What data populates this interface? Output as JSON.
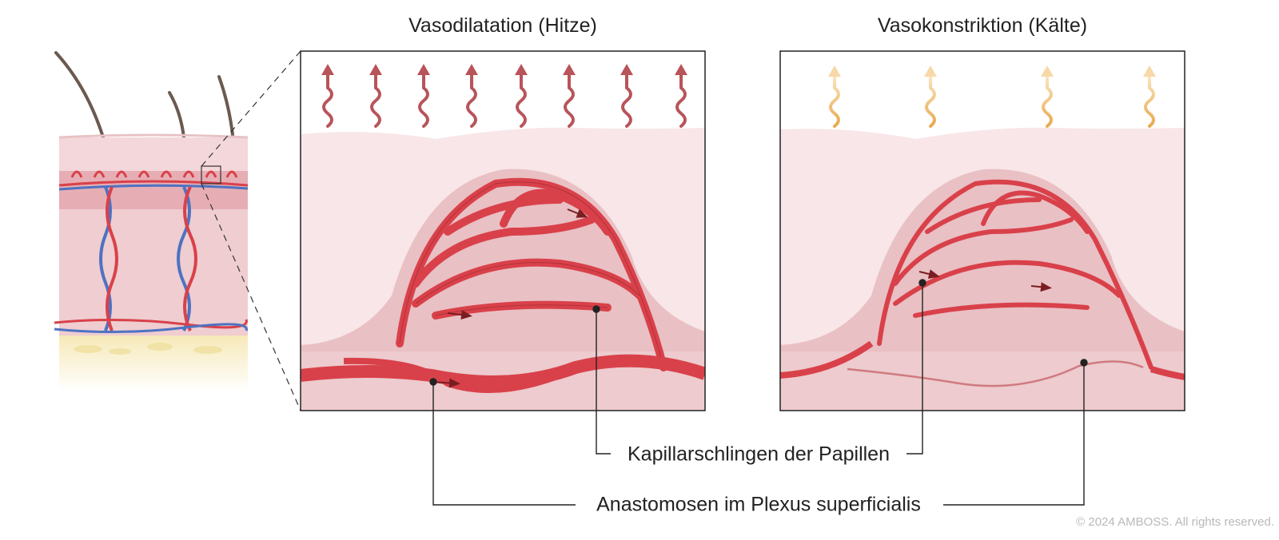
{
  "titles": {
    "left": "Vasodilatation (Hitze)",
    "right": "Vasokonstriktion (Kälte)"
  },
  "labels": {
    "capillaries": "Kapillarschlingen der Papillen",
    "anastomoses": "Anastomosen im Plexus superficialis"
  },
  "copyright": "© 2024 AMBOSS. All rights reserved.",
  "colors": {
    "artery": "#d9414a",
    "vein": "#4e72c2",
    "heat_wave": "#b8545a",
    "cold_wave": "#e9a94d",
    "epidermis": "#f8e6e8",
    "dermis": "#ecc7cb",
    "papilla": "#e4b4b9",
    "fat": "#f6e9b8",
    "frame": "#222222"
  }
}
